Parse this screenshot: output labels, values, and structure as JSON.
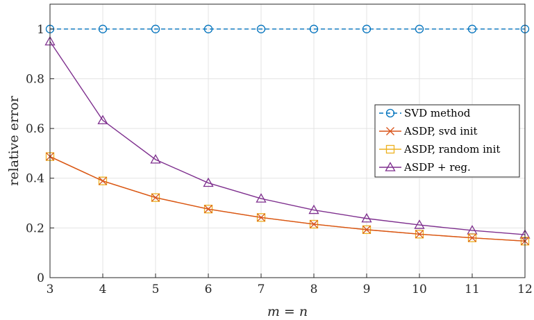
{
  "chart_data": {
    "type": "line",
    "title": "",
    "xlabel": "m = n",
    "ylabel": "relative error",
    "xlim": [
      3,
      12
    ],
    "ylim": [
      0,
      1.1
    ],
    "x_ticks": [
      3,
      4,
      5,
      6,
      7,
      8,
      9,
      10,
      11,
      12
    ],
    "y_ticks": [
      0,
      0.2,
      0.4,
      0.6,
      0.8,
      1
    ],
    "y_tick_labels": [
      "0",
      "0.2",
      "0.4",
      "0.6",
      "0.8",
      "1"
    ],
    "grid": true,
    "legend_position": "center-right",
    "x": [
      3,
      4,
      5,
      6,
      7,
      8,
      9,
      10,
      11,
      12
    ],
    "series": [
      {
        "name": "SVD method",
        "values": [
          1,
          1,
          1,
          1,
          1,
          1,
          1,
          1,
          1,
          1
        ],
        "color": "#0072BD",
        "marker": "circle",
        "dash": true
      },
      {
        "name": "ASDP, svd init",
        "values": [
          0.487,
          0.389,
          0.322,
          0.276,
          0.242,
          0.215,
          0.193,
          0.175,
          0.16,
          0.147
        ],
        "color": "#D95319",
        "marker": "x",
        "dash": false
      },
      {
        "name": "ASDP, random init",
        "values": [
          0.487,
          0.389,
          0.322,
          0.276,
          0.242,
          0.215,
          0.193,
          0.175,
          0.16,
          0.147
        ],
        "color": "#EDB120",
        "marker": "square",
        "dash": false
      },
      {
        "name": "ASDP + reg.",
        "values": [
          0.95,
          0.633,
          0.475,
          0.381,
          0.318,
          0.272,
          0.238,
          0.212,
          0.19,
          0.173
        ],
        "color": "#7E2F8E",
        "marker": "triangle",
        "dash": false
      }
    ]
  }
}
